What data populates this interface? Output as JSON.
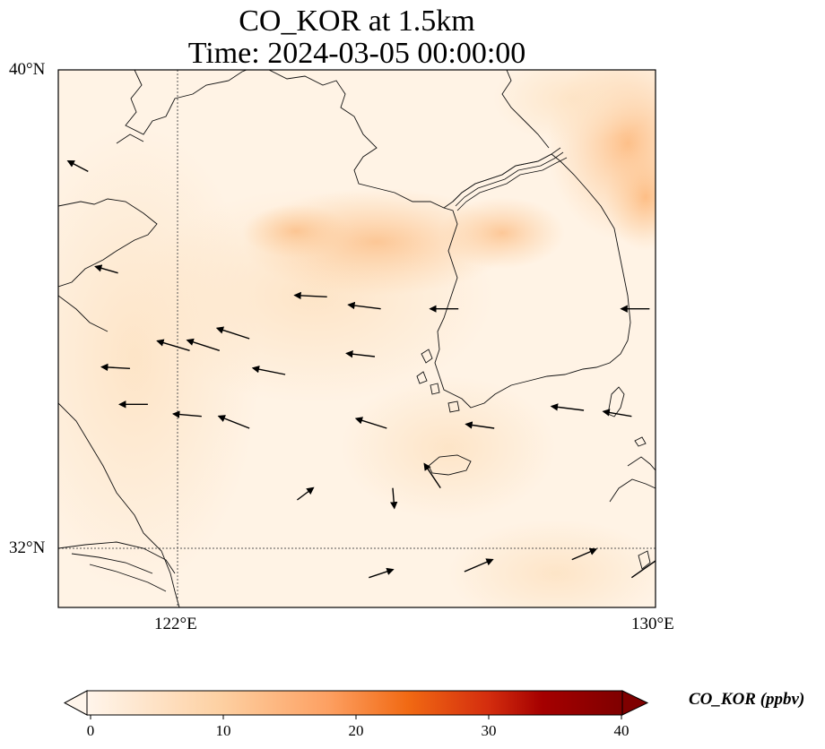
{
  "title": {
    "line1": "CO_KOR at 1.5km",
    "line2": "Time: 2024-03-05 00:00:00"
  },
  "axes": {
    "lat_ticks": [
      "40°N",
      "32°N"
    ],
    "lon_ticks": [
      "122°E",
      "130°E"
    ],
    "lon_range": [
      120,
      130
    ],
    "lat_range": [
      31,
      40
    ],
    "gridlines": "dotted",
    "coastlines": true,
    "borders": true
  },
  "colorbar": {
    "label": "CO_KOR (ppbv)",
    "ticks": [
      "0",
      "10",
      "20",
      "30",
      "40"
    ],
    "range": [
      0,
      40
    ],
    "extend": "both",
    "colormap": [
      "#fff5eb",
      "#fdd0a2",
      "#fdae6b",
      "#f16913",
      "#d94801",
      "#a50000",
      "#7f0000"
    ]
  },
  "chart_data": {
    "type": "heatmap",
    "variable": "CO_KOR",
    "units": "ppbv",
    "level": "1.5km",
    "time": "2024-03-05 00:00:00",
    "concentration_regions": [
      {
        "lon": 124.0,
        "lat": 37.7,
        "value": 9
      },
      {
        "lon": 125.2,
        "lat": 37.6,
        "value": 8
      },
      {
        "lon": 127.2,
        "lat": 37.7,
        "value": 7
      },
      {
        "lon": 129.6,
        "lat": 39.2,
        "value": 11
      },
      {
        "lon": 129.7,
        "lat": 38.3,
        "value": 10
      },
      {
        "lon": 128.5,
        "lat": 39.7,
        "value": 6
      },
      {
        "lon": 122.0,
        "lat": 36.2,
        "value": 2
      },
      {
        "lon": 124.0,
        "lat": 35.5,
        "value": 3
      },
      {
        "lon": 128.0,
        "lat": 33.5,
        "value": 3
      },
      {
        "lon": 126.0,
        "lat": 33.0,
        "value": 2
      }
    ],
    "wind_vectors": [
      {
        "lon": 120.5,
        "lat": 38.3,
        "u": -2.5,
        "v": 1.3
      },
      {
        "lon": 121.0,
        "lat": 36.6,
        "u": -2.8,
        "v": 0.8
      },
      {
        "lon": 121.2,
        "lat": 35.0,
        "u": -3.5,
        "v": 0.2
      },
      {
        "lon": 121.5,
        "lat": 34.4,
        "u": -3.5,
        "v": 0.0
      },
      {
        "lon": 122.2,
        "lat": 35.3,
        "u": -4.0,
        "v": 1.2
      },
      {
        "lon": 122.7,
        "lat": 35.3,
        "u": -4.0,
        "v": 1.3
      },
      {
        "lon": 123.2,
        "lat": 35.5,
        "u": -4.0,
        "v": 1.3
      },
      {
        "lon": 123.8,
        "lat": 34.9,
        "u": -4.0,
        "v": 0.8
      },
      {
        "lon": 123.2,
        "lat": 34.0,
        "u": -3.8,
        "v": 1.5
      },
      {
        "lon": 122.4,
        "lat": 34.2,
        "u": -3.5,
        "v": 0.3
      },
      {
        "lon": 124.5,
        "lat": 36.2,
        "u": -4.0,
        "v": 0.2
      },
      {
        "lon": 125.4,
        "lat": 36.0,
        "u": -4.0,
        "v": 0.5
      },
      {
        "lon": 125.3,
        "lat": 35.2,
        "u": -3.5,
        "v": 0.4
      },
      {
        "lon": 125.5,
        "lat": 34.0,
        "u": -3.8,
        "v": 1.2
      },
      {
        "lon": 126.7,
        "lat": 36.0,
        "u": -3.5,
        "v": 0.0
      },
      {
        "lon": 127.3,
        "lat": 34.0,
        "u": -3.5,
        "v": 0.5
      },
      {
        "lon": 128.8,
        "lat": 34.3,
        "u": -4.0,
        "v": 0.5
      },
      {
        "lon": 129.6,
        "lat": 34.2,
        "u": -3.5,
        "v": 0.6
      },
      {
        "lon": 129.9,
        "lat": 36.0,
        "u": -3.5,
        "v": 0.0
      },
      {
        "lon": 124.0,
        "lat": 32.8,
        "u": 2.0,
        "v": 1.5
      },
      {
        "lon": 125.2,
        "lat": 31.5,
        "u": 3.0,
        "v": 1.0
      },
      {
        "lon": 126.8,
        "lat": 31.6,
        "u": 3.5,
        "v": 1.5
      },
      {
        "lon": 128.6,
        "lat": 31.8,
        "u": 3.0,
        "v": 1.3
      },
      {
        "lon": 129.6,
        "lat": 31.5,
        "u": 5.0,
        "v": 3.5
      },
      {
        "lon": 126.4,
        "lat": 33.0,
        "u": -2.0,
        "v": 3.0
      },
      {
        "lon": 125.6,
        "lat": 33.0,
        "u": 0.2,
        "v": -2.5
      }
    ]
  }
}
